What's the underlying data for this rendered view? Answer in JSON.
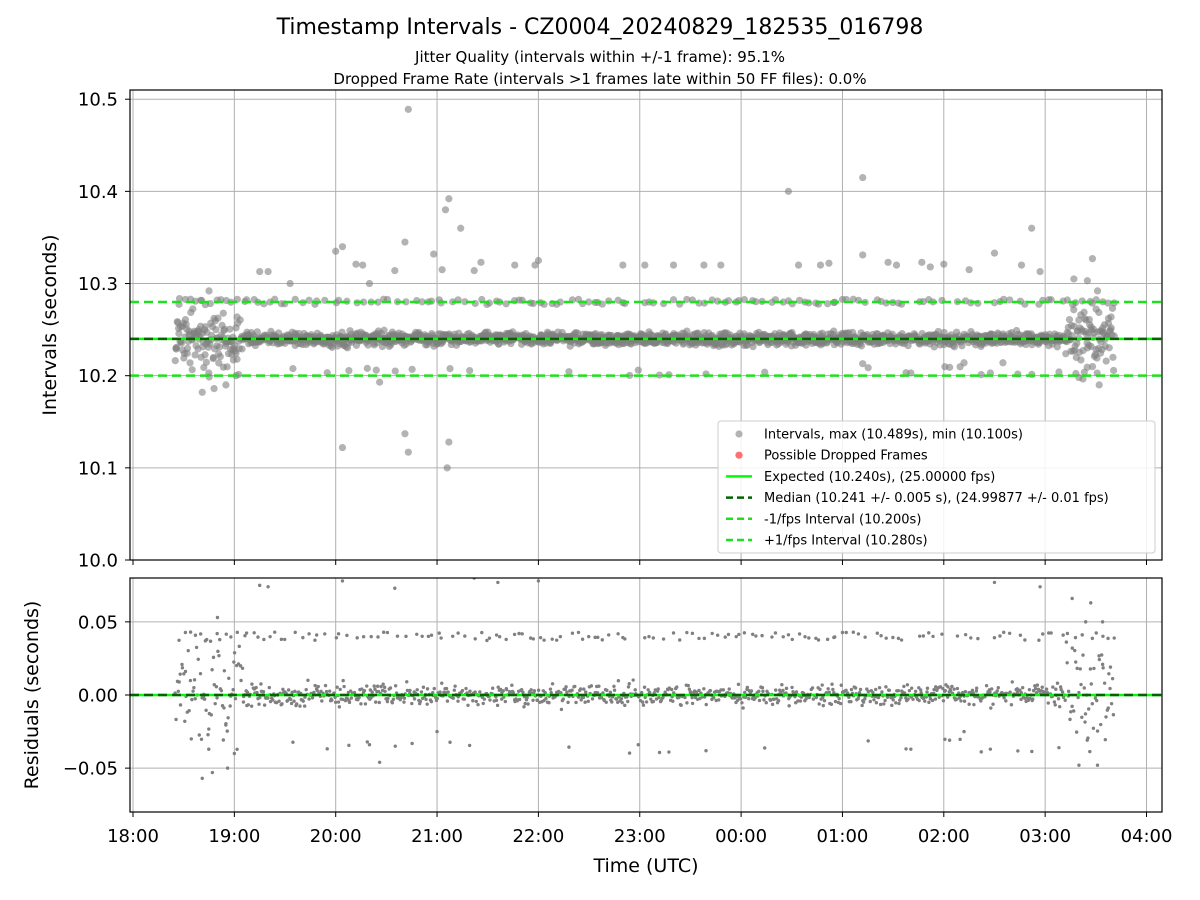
{
  "figure": {
    "title": "Timestamp Intervals - CZ0004_20240829_182535_016798",
    "subtitle_1": "Jitter Quality (intervals within +/-1 frame): 95.1%",
    "subtitle_2": "Dropped Frame Rate (intervals >1 frames late within 50 FF files): 0.0%"
  },
  "colors": {
    "points": "#808080",
    "dropped": "#ff4d4d",
    "expected": "#00ff00",
    "median": "#006400",
    "interval_bounds": "#1ee01e",
    "grid": "#b0b0b0"
  },
  "chart_data": [
    {
      "type": "scatter",
      "panel": "top",
      "xlabel": "",
      "ylabel": "Intervals (seconds)",
      "ylim": [
        10.0,
        10.51
      ],
      "yticks": [
        "10.0",
        "10.1",
        "10.2",
        "10.3",
        "10.4",
        "10.5"
      ],
      "ytick_values": [
        10.0,
        10.1,
        10.2,
        10.3,
        10.4,
        10.5
      ],
      "grid": true,
      "legend_placement": "lower-right",
      "legend": [
        "Intervals, max (10.489s), min (10.100s)",
        "Possible Dropped Frames",
        "Expected (10.240s), (25.00000 fps)",
        "Median (10.241 +/- 0.005 s), (24.99877 +/- 0.01 fps)",
        "-1/fps Interval (10.200s)",
        "+1/fps Interval (10.280s)"
      ],
      "reference_lines": {
        "expected": 10.24,
        "median": 10.241,
        "minus_one_fps": 10.2,
        "plus_one_fps": 10.28
      },
      "data_range": {
        "x_start": "18:25",
        "x_end": "03:41"
      },
      "baseline": {
        "center": 10.24,
        "spread": 0.006
      },
      "max_interval": 10.489,
      "min_interval": 10.1,
      "notable_points": [
        {
          "x": "18:41",
          "y": 10.182
        },
        {
          "x": "18:48",
          "y": 10.186
        },
        {
          "x": "18:55",
          "y": 10.19
        },
        {
          "x": "19:01",
          "y": 10.2
        },
        {
          "x": "18:45",
          "y": 10.292
        },
        {
          "x": "19:15",
          "y": 10.313
        },
        {
          "x": "19:20",
          "y": 10.313
        },
        {
          "x": "19:33",
          "y": 10.3
        },
        {
          "x": "20:00",
          "y": 10.335
        },
        {
          "x": "20:04",
          "y": 10.34
        },
        {
          "x": "20:04",
          "y": 10.122
        },
        {
          "x": "20:12",
          "y": 10.321
        },
        {
          "x": "20:16",
          "y": 10.32
        },
        {
          "x": "20:20",
          "y": 10.3
        },
        {
          "x": "20:24",
          "y": 10.206
        },
        {
          "x": "20:26",
          "y": 10.193
        },
        {
          "x": "20:35",
          "y": 10.314
        },
        {
          "x": "20:41",
          "y": 10.345
        },
        {
          "x": "20:41",
          "y": 10.137
        },
        {
          "x": "20:43",
          "y": 10.117
        },
        {
          "x": "20:43",
          "y": 10.489
        },
        {
          "x": "20:58",
          "y": 10.332
        },
        {
          "x": "21:03",
          "y": 10.315
        },
        {
          "x": "21:05",
          "y": 10.38
        },
        {
          "x": "21:06",
          "y": 10.1
        },
        {
          "x": "21:07",
          "y": 10.392
        },
        {
          "x": "21:07",
          "y": 10.128
        },
        {
          "x": "21:14",
          "y": 10.36
        },
        {
          "x": "21:22",
          "y": 10.314
        },
        {
          "x": "21:26",
          "y": 10.323
        },
        {
          "x": "21:46",
          "y": 10.32
        },
        {
          "x": "21:58",
          "y": 10.32
        },
        {
          "x": "22:00",
          "y": 10.325
        },
        {
          "x": "22:50",
          "y": 10.32
        },
        {
          "x": "23:03",
          "y": 10.32
        },
        {
          "x": "23:20",
          "y": 10.32
        },
        {
          "x": "23:38",
          "y": 10.32
        },
        {
          "x": "23:48",
          "y": 10.32
        },
        {
          "x": "00:28",
          "y": 10.4
        },
        {
          "x": "00:34",
          "y": 10.32
        },
        {
          "x": "00:47",
          "y": 10.32
        },
        {
          "x": "00:52",
          "y": 10.322
        },
        {
          "x": "01:12",
          "y": 10.415
        },
        {
          "x": "01:12",
          "y": 10.331
        },
        {
          "x": "01:12",
          "y": 10.213
        },
        {
          "x": "01:27",
          "y": 10.323
        },
        {
          "x": "01:32",
          "y": 10.32
        },
        {
          "x": "01:47",
          "y": 10.323
        },
        {
          "x": "01:52",
          "y": 10.318
        },
        {
          "x": "02:00",
          "y": 10.321
        },
        {
          "x": "02:12",
          "y": 10.214
        },
        {
          "x": "02:15",
          "y": 10.315
        },
        {
          "x": "02:30",
          "y": 10.333
        },
        {
          "x": "02:35",
          "y": 10.214
        },
        {
          "x": "02:46",
          "y": 10.32
        },
        {
          "x": "02:52",
          "y": 10.36
        },
        {
          "x": "02:57",
          "y": 10.313
        },
        {
          "x": "03:17",
          "y": 10.305
        },
        {
          "x": "03:20",
          "y": 10.198
        },
        {
          "x": "03:25",
          "y": 10.303
        },
        {
          "x": "03:28",
          "y": 10.327
        },
        {
          "x": "03:31",
          "y": 10.292
        },
        {
          "x": "03:32",
          "y": 10.19
        }
      ]
    },
    {
      "type": "scatter",
      "panel": "bottom",
      "xlabel": "Time (UTC)",
      "ylabel": "Residuals (seconds)",
      "ylim": [
        -0.08,
        0.08
      ],
      "yticks": [
        "−0.05",
        "0.00",
        "0.05"
      ],
      "ytick_values": [
        -0.05,
        0.0,
        0.05
      ],
      "xticks": [
        "18:00",
        "19:00",
        "20:00",
        "21:00",
        "22:00",
        "23:00",
        "00:00",
        "01:00",
        "02:00",
        "03:00",
        "04:00"
      ],
      "grid": true,
      "reference_lines": {
        "expected": 0.0,
        "median": 0.001
      },
      "data_range": {
        "x_start": "18:25",
        "x_end": "03:41"
      },
      "baseline": {
        "center": 0.0,
        "spread": 0.006
      },
      "notable_points": [
        {
          "x": "18:41",
          "y": -0.057
        },
        {
          "x": "18:47",
          "y": -0.053
        },
        {
          "x": "18:50",
          "y": 0.053
        },
        {
          "x": "18:56",
          "y": -0.05
        },
        {
          "x": "19:00",
          "y": -0.04
        },
        {
          "x": "19:15",
          "y": 0.075
        },
        {
          "x": "19:20",
          "y": 0.074
        },
        {
          "x": "20:04",
          "y": 0.078
        },
        {
          "x": "20:20",
          "y": -0.034
        },
        {
          "x": "20:26",
          "y": -0.046
        },
        {
          "x": "20:35",
          "y": 0.073
        },
        {
          "x": "21:00",
          "y": -0.025
        },
        {
          "x": "21:22",
          "y": 0.08
        },
        {
          "x": "21:36",
          "y": 0.077
        },
        {
          "x": "22:00",
          "y": 0.078
        },
        {
          "x": "02:12",
          "y": -0.025
        },
        {
          "x": "02:30",
          "y": 0.077
        },
        {
          "x": "02:57",
          "y": 0.074
        },
        {
          "x": "03:16",
          "y": 0.066
        },
        {
          "x": "03:20",
          "y": -0.048
        },
        {
          "x": "03:24",
          "y": 0.05
        },
        {
          "x": "03:27",
          "y": 0.063
        },
        {
          "x": "03:31",
          "y": -0.048
        },
        {
          "x": "03:34",
          "y": 0.05
        }
      ]
    }
  ]
}
